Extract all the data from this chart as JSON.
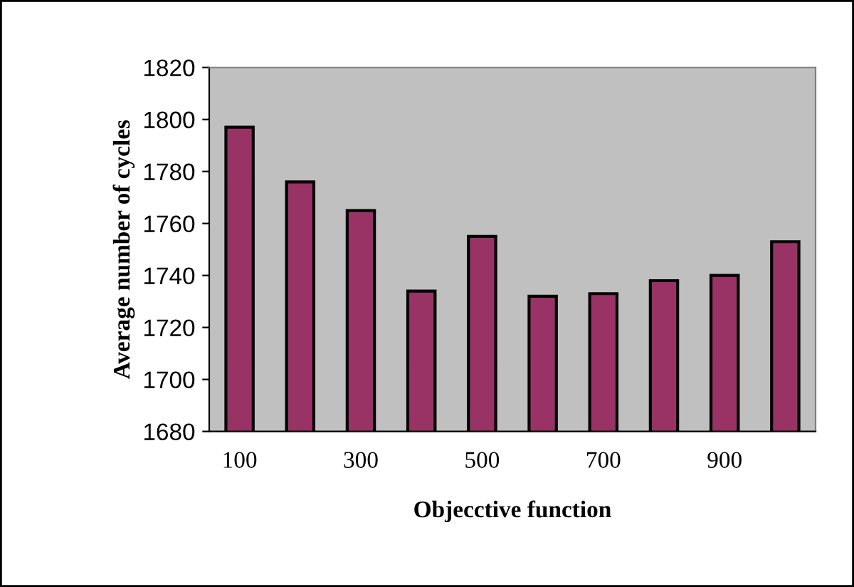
{
  "chart_data": {
    "type": "bar",
    "xlabel": "Objecctive function",
    "ylabel": "Average number of cycles",
    "categories": [
      "100",
      null,
      "300",
      null,
      "500",
      null,
      "700",
      null,
      "900",
      null
    ],
    "values": [
      1797,
      1776,
      1765,
      1734,
      1755,
      1732,
      1733,
      1738,
      1740,
      1753
    ],
    "color": "#993366",
    "ylim": [
      1680,
      1820
    ],
    "yticks": [
      1680,
      1700,
      1720,
      1740,
      1760,
      1780,
      1800,
      1820
    ],
    "grid": false
  }
}
